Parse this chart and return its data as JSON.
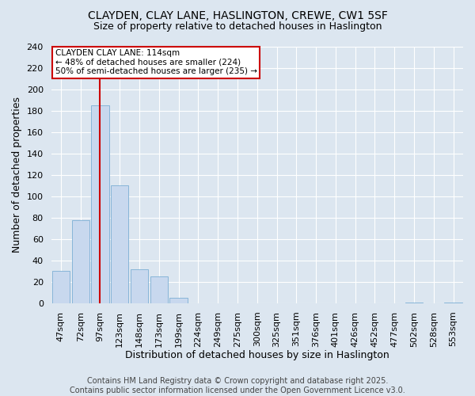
{
  "title": "CLAYDEN, CLAY LANE, HASLINGTON, CREWE, CW1 5SF",
  "subtitle": "Size of property relative to detached houses in Haslington",
  "xlabel": "Distribution of detached houses by size in Haslington",
  "ylabel": "Number of detached properties",
  "categories": [
    "47sqm",
    "72sqm",
    "97sqm",
    "123sqm",
    "148sqm",
    "173sqm",
    "199sqm",
    "224sqm",
    "249sqm",
    "275sqm",
    "300sqm",
    "325sqm",
    "351sqm",
    "376sqm",
    "401sqm",
    "426sqm",
    "452sqm",
    "477sqm",
    "502sqm",
    "528sqm",
    "553sqm"
  ],
  "values": [
    30,
    78,
    185,
    110,
    32,
    25,
    5,
    0,
    0,
    0,
    0,
    0,
    0,
    0,
    0,
    0,
    0,
    0,
    1,
    0,
    1
  ],
  "bar_color": "#c8d8ee",
  "bar_edge_color": "#7bafd4",
  "background_color": "#dce6f0",
  "grid_color": "#ffffff",
  "vline_x_index": 2,
  "vline_color": "#cc0000",
  "annotation_text": "CLAYDEN CLAY LANE: 114sqm\n← 48% of detached houses are smaller (224)\n50% of semi-detached houses are larger (235) →",
  "annotation_box_color": "#cc0000",
  "ylim": [
    0,
    240
  ],
  "yticks": [
    0,
    20,
    40,
    60,
    80,
    100,
    120,
    140,
    160,
    180,
    200,
    220,
    240
  ],
  "footer": "Contains HM Land Registry data © Crown copyright and database right 2025.\nContains public sector information licensed under the Open Government Licence v3.0.",
  "title_fontsize": 10,
  "subtitle_fontsize": 9,
  "axis_label_fontsize": 9,
  "tick_fontsize": 8,
  "footer_fontsize": 7
}
